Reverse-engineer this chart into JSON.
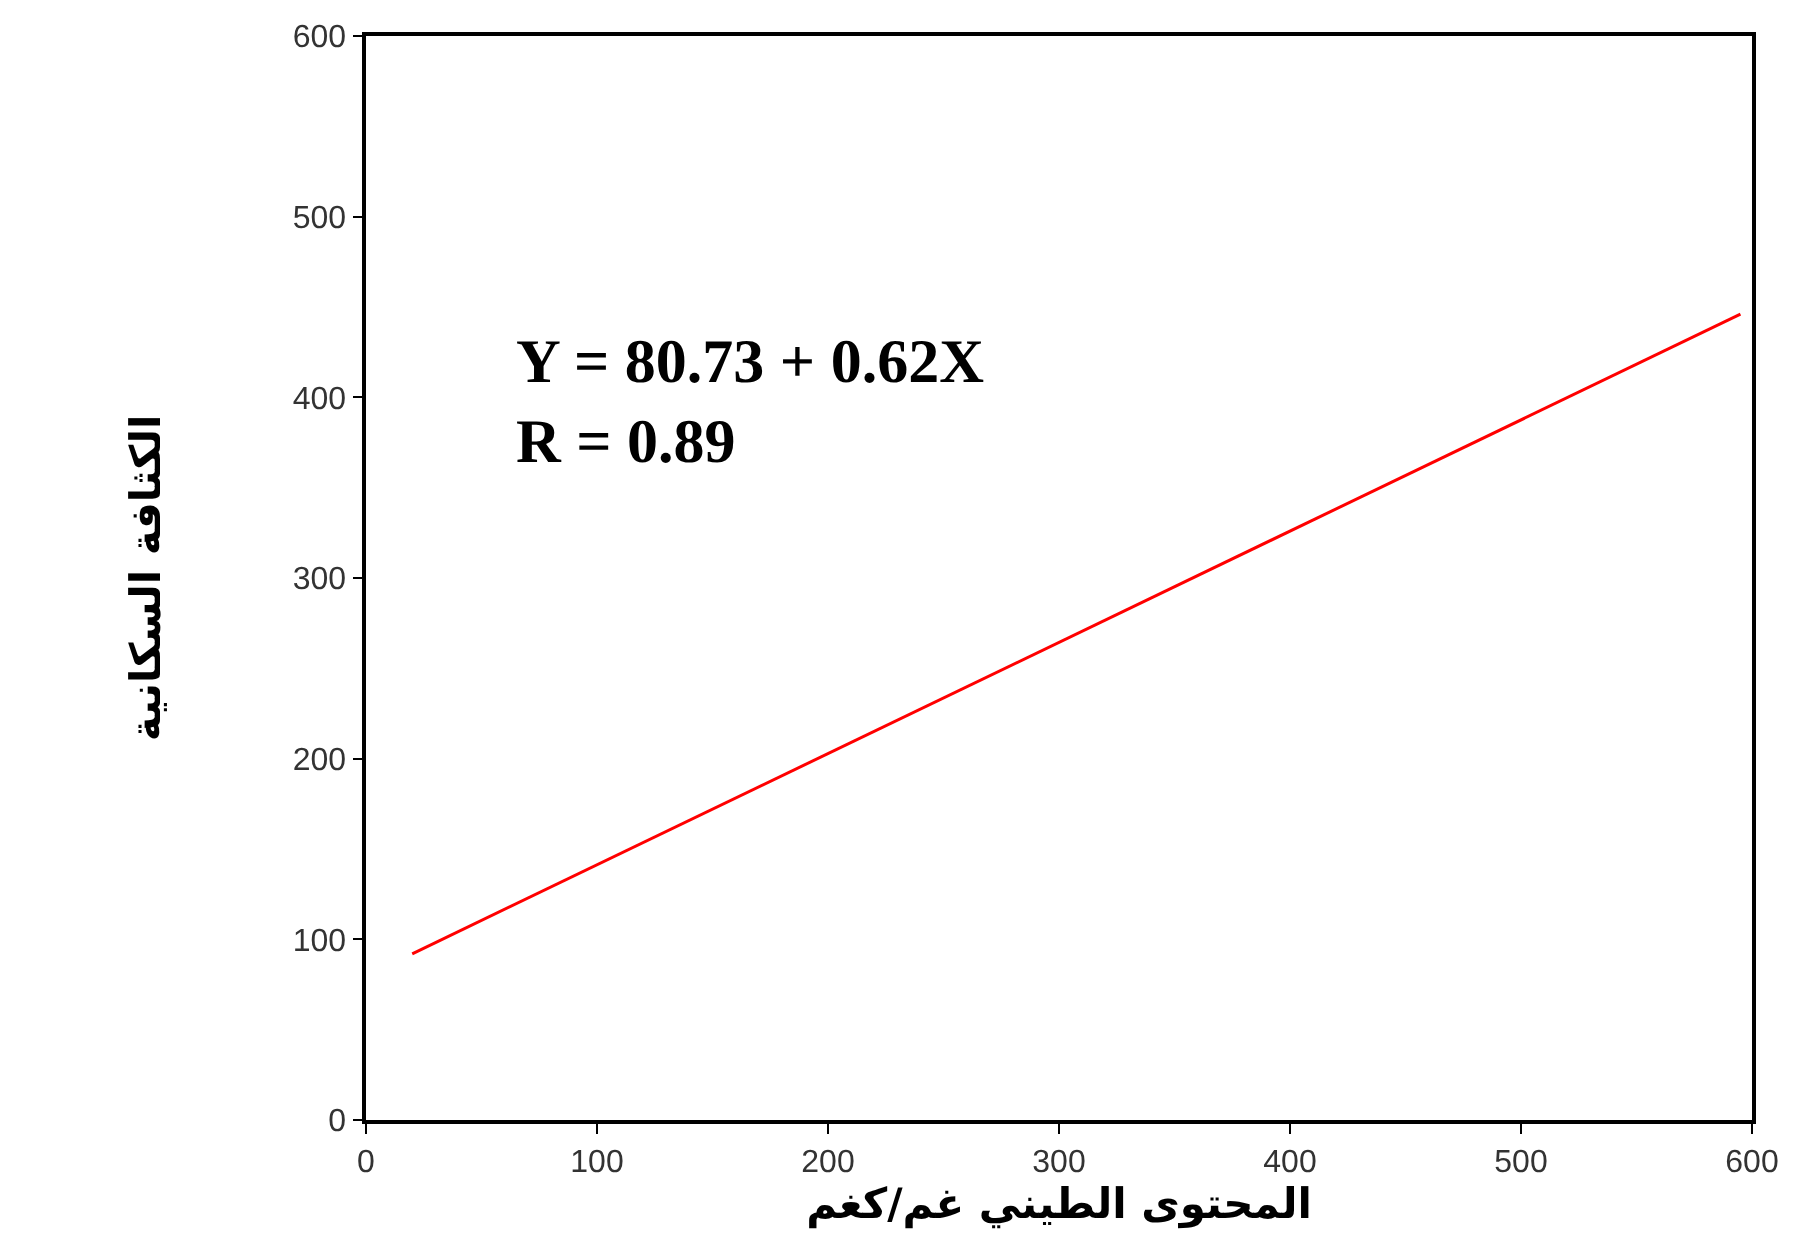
{
  "chart_data": {
    "type": "line",
    "xlabel": "المحتوى الطيني غم/كغم",
    "ylabel": "الكثافة السكانية",
    "annotations": [
      "Y = 80.73 + 0.62X",
      "R = 0.89"
    ],
    "x": [
      20,
      595
    ],
    "series": [
      {
        "color": "#ff0000",
        "values": [
          92,
          446
        ]
      }
    ],
    "xlim": [
      0,
      600
    ],
    "xticks": [
      0,
      100,
      200,
      300,
      400,
      500,
      600
    ],
    "ylim": [
      0,
      600
    ],
    "yticks": [
      0,
      100,
      200,
      300,
      400,
      500,
      600
    ],
    "grid": false,
    "marker": "none",
    "line_style": "solid"
  }
}
